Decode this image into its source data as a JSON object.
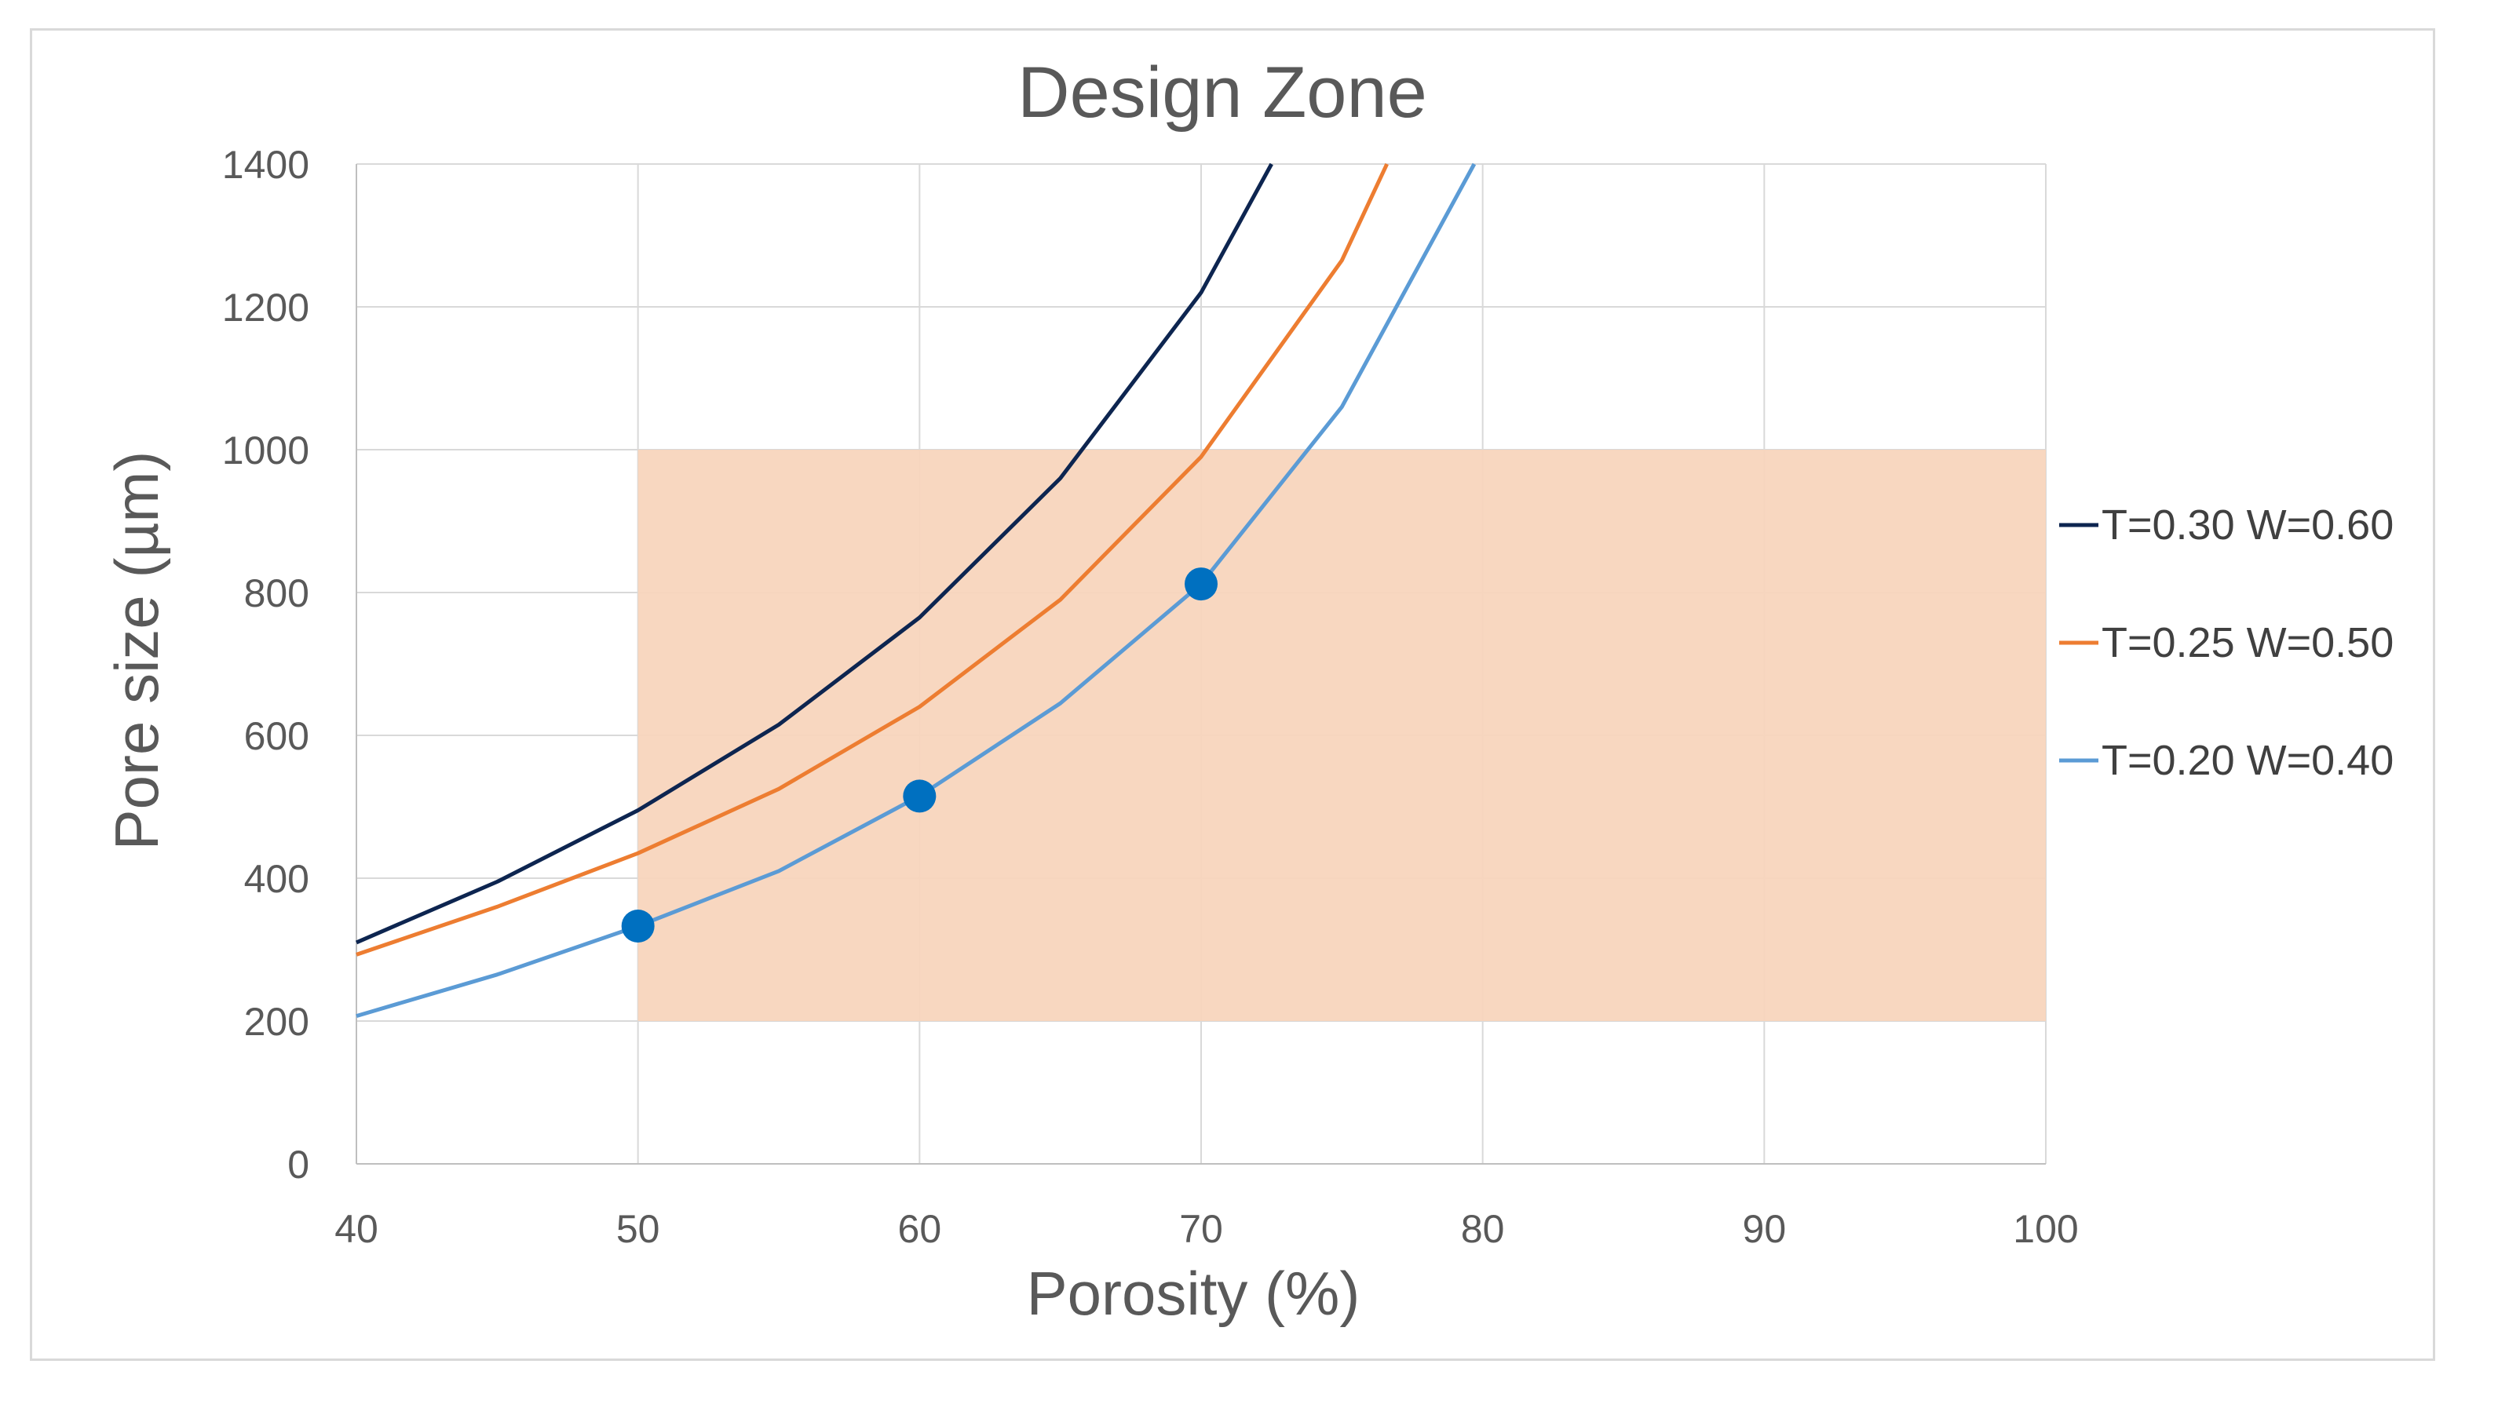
{
  "chart_data": {
    "type": "line",
    "title": "Design Zone",
    "xlabel": "Porosity (%)",
    "ylabel": "Pore size (µm)",
    "xlim": [
      40,
      100
    ],
    "ylim": [
      0,
      1400
    ],
    "x_ticks": [
      40,
      50,
      60,
      70,
      80,
      90,
      100
    ],
    "y_ticks": [
      0,
      200,
      400,
      600,
      800,
      1000,
      1200,
      1400
    ],
    "grid": true,
    "legend_position": "right",
    "design_zone": {
      "x_range": [
        50,
        100
      ],
      "y_range": [
        200,
        1000
      ],
      "color": "#f8d5bd"
    },
    "series": [
      {
        "name": "T=0.30 W=0.60",
        "color": "#0d2550",
        "x": [
          40,
          45,
          50,
          55,
          60,
          65,
          70,
          72.5
        ],
        "y": [
          310,
          395,
          495,
          615,
          765,
          960,
          1220,
          1400
        ]
      },
      {
        "name": "T=0.25 W=0.50",
        "color": "#ed7d31",
        "x": [
          40,
          45,
          50,
          55,
          60,
          65,
          70,
          75,
          76.6
        ],
        "y": [
          293,
          360,
          435,
          525,
          640,
          790,
          990,
          1265,
          1400
        ]
      },
      {
        "name": "T=0.20 W=0.40",
        "color": "#5b9bd5",
        "x": [
          40,
          45,
          50,
          55,
          60,
          65,
          70,
          75,
          79.7
        ],
        "y": [
          207,
          265,
          333,
          410,
          515,
          645,
          812,
          1060,
          1400
        ]
      }
    ],
    "highlight_points": {
      "color": "#0070c0",
      "points": [
        {
          "x": 50,
          "y": 333
        },
        {
          "x": 60,
          "y": 515
        },
        {
          "x": 70,
          "y": 812
        }
      ]
    }
  }
}
